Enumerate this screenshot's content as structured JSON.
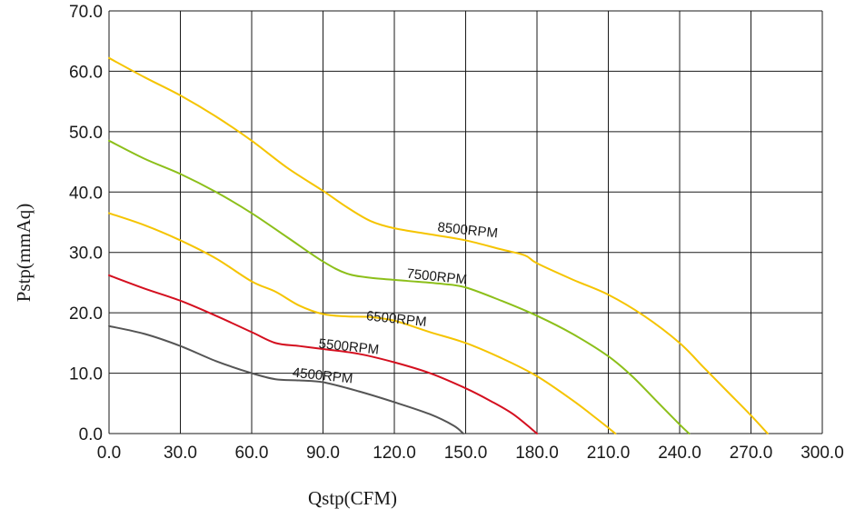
{
  "chart_data": {
    "type": "line",
    "xlabel": "Qstp(CFM)",
    "ylabel": "Pstp(mmAq)",
    "xlim": [
      0,
      300
    ],
    "ylim": [
      0,
      70
    ],
    "x_ticks": [
      "0.0",
      "30.0",
      "60.0",
      "90.0",
      "120.0",
      "150.0",
      "180.0",
      "210.0",
      "240.0",
      "270.0",
      "300.0"
    ],
    "y_ticks": [
      "0.0",
      "10.0",
      "20.0",
      "30.0",
      "40.0",
      "50.0",
      "60.0",
      "70.0"
    ],
    "grid": true,
    "series": [
      {
        "name": "8500RPM",
        "color": "#f5c400",
        "label_at": [
          138,
          33.5
        ],
        "points": [
          [
            0,
            62.2
          ],
          [
            15,
            59
          ],
          [
            30,
            56
          ],
          [
            45,
            52.5
          ],
          [
            60,
            48.5
          ],
          [
            75,
            44
          ],
          [
            90,
            40.2
          ],
          [
            100,
            37.5
          ],
          [
            110,
            35.2
          ],
          [
            120,
            34
          ],
          [
            135,
            33
          ],
          [
            150,
            32
          ],
          [
            165,
            30.5
          ],
          [
            175,
            29.5
          ],
          [
            180,
            28.2
          ],
          [
            195,
            25.5
          ],
          [
            210,
            23
          ],
          [
            225,
            19.5
          ],
          [
            240,
            15
          ],
          [
            250,
            11
          ],
          [
            260,
            7
          ],
          [
            270,
            3
          ],
          [
            277,
            0
          ]
        ]
      },
      {
        "name": "7500RPM",
        "color": "#8cbf1a",
        "label_at": [
          125,
          25.8
        ],
        "points": [
          [
            0,
            48.5
          ],
          [
            15,
            45.5
          ],
          [
            30,
            43
          ],
          [
            45,
            40
          ],
          [
            60,
            36.5
          ],
          [
            75,
            32.5
          ],
          [
            90,
            28.5
          ],
          [
            100,
            26.5
          ],
          [
            110,
            25.8
          ],
          [
            125,
            25.3
          ],
          [
            140,
            24.8
          ],
          [
            150,
            24.2
          ],
          [
            165,
            22
          ],
          [
            180,
            19.5
          ],
          [
            195,
            16.5
          ],
          [
            210,
            12.8
          ],
          [
            220,
            9.5
          ],
          [
            230,
            5.5
          ],
          [
            240,
            1.5
          ],
          [
            244,
            0
          ]
        ]
      },
      {
        "name": "6500RPM",
        "color": "#f5c400",
        "label_at": [
          108,
          18.8
        ],
        "points": [
          [
            0,
            36.5
          ],
          [
            15,
            34.5
          ],
          [
            30,
            32
          ],
          [
            45,
            29
          ],
          [
            60,
            25.2
          ],
          [
            70,
            23.5
          ],
          [
            80,
            21.2
          ],
          [
            90,
            19.8
          ],
          [
            100,
            19.4
          ],
          [
            110,
            19.3
          ],
          [
            120,
            18.7
          ],
          [
            135,
            16.8
          ],
          [
            150,
            15
          ],
          [
            165,
            12.5
          ],
          [
            180,
            9.5
          ],
          [
            195,
            5.5
          ],
          [
            205,
            2.5
          ],
          [
            213,
            0
          ]
        ]
      },
      {
        "name": "5500RPM",
        "color": "#d40f1f",
        "label_at": [
          88,
          14.2
        ],
        "points": [
          [
            0,
            26.2
          ],
          [
            15,
            24
          ],
          [
            30,
            22
          ],
          [
            45,
            19.5
          ],
          [
            60,
            16.8
          ],
          [
            70,
            15
          ],
          [
            80,
            14.5
          ],
          [
            90,
            14
          ],
          [
            105,
            13.2
          ],
          [
            120,
            11.8
          ],
          [
            135,
            10
          ],
          [
            150,
            7.5
          ],
          [
            160,
            5.5
          ],
          [
            170,
            3.2
          ],
          [
            180,
            0
          ]
        ]
      },
      {
        "name": "4500RPM",
        "color": "#555555",
        "label_at": [
          77,
          9.4
        ],
        "points": [
          [
            0,
            17.8
          ],
          [
            15,
            16.5
          ],
          [
            30,
            14.5
          ],
          [
            45,
            12
          ],
          [
            60,
            10
          ],
          [
            70,
            9
          ],
          [
            80,
            8.8
          ],
          [
            90,
            8.5
          ],
          [
            105,
            7
          ],
          [
            120,
            5.2
          ],
          [
            135,
            3.2
          ],
          [
            145,
            1.3
          ],
          [
            149,
            0
          ]
        ]
      }
    ]
  }
}
